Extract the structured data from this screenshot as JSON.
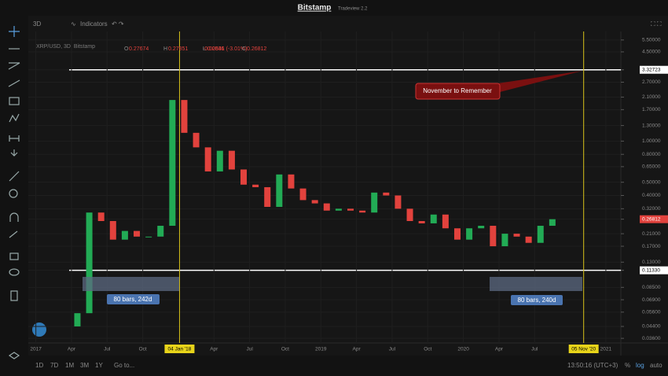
{
  "header": {
    "brand": "Bitstamp",
    "version": "Tradeview 2.2"
  },
  "toolbar": {
    "interval": "3D",
    "indicators": "Indicators"
  },
  "symbol": "XRP/USD, 3D, Bitstamp",
  "ohlc": [
    {
      "label": "O",
      "value": 0.27674
    },
    {
      "label": "H",
      "value": 0.27851
    },
    {
      "label": "L",
      "value": 0.2546
    },
    {
      "label": "C",
      "value": 0.26812
    }
  ],
  "change": "-0.00831 (-3.01%)",
  "annotations": [
    "November to Remember",
    "80 bars, 242d",
    "80 bars, 240d"
  ],
  "bottom_bar": {
    "ranges": [
      "1D",
      "7D",
      "1M",
      "3M",
      "1Y"
    ],
    "goto": "Go to...",
    "clock": "13:50:16 (UTC+3)",
    "percent": "%",
    "log": "log",
    "auto": "auto"
  },
  "chart_data": {
    "type": "candlestick",
    "log_scale": true,
    "up_color": "#22ab55",
    "down_color": "#e2423d",
    "x": [
      "2017-04",
      "2017-05",
      "2017-06",
      "2017-07",
      "2017-08",
      "2017-09",
      "2017-10",
      "2017-11",
      "2017-12",
      "2018-01",
      "2018-02",
      "2018-03",
      "2018-04",
      "2018-05",
      "2018-06",
      "2018-07",
      "2018-08",
      "2018-09",
      "2018-10",
      "2018-11",
      "2018-12",
      "2019-01",
      "2019-02",
      "2019-03",
      "2019-04",
      "2019-05",
      "2019-06",
      "2019-07",
      "2019-08",
      "2019-09",
      "2019-10",
      "2019-11",
      "2019-12",
      "2020-01",
      "2020-02",
      "2020-03",
      "2020-04",
      "2020-05",
      "2020-06",
      "2020-07",
      "2020-08"
    ],
    "values": [
      0.055,
      0.3,
      0.26,
      0.19,
      0.22,
      0.2,
      0.2,
      0.24,
      2.0,
      1.15,
      0.9,
      0.6,
      0.85,
      0.62,
      0.48,
      0.46,
      0.33,
      0.57,
      0.45,
      0.37,
      0.35,
      0.31,
      0.32,
      0.31,
      0.3,
      0.42,
      0.4,
      0.32,
      0.26,
      0.25,
      0.29,
      0.23,
      0.19,
      0.23,
      0.24,
      0.17,
      0.21,
      0.2,
      0.18,
      0.24,
      0.26812
    ],
    "ylim": [
      0.0333,
      6.02
    ],
    "yticks": [
      {
        "value": 5.5,
        "label": "5.50000"
      },
      {
        "value": 4.5,
        "label": "4.50000"
      },
      {
        "value": 3.32723,
        "label": "3.32723"
      },
      {
        "value": 2.7,
        "label": "2.70000"
      },
      {
        "value": 2.1,
        "label": "2.10000"
      },
      {
        "value": 1.7,
        "label": "1.70000"
      },
      {
        "value": 1.3,
        "label": "1.30000"
      },
      {
        "value": 1.0,
        "label": "1.00000"
      },
      {
        "value": 0.8,
        "label": "0.80000"
      },
      {
        "value": 0.65,
        "label": "0.65000"
      },
      {
        "value": 0.5,
        "label": "0.50000"
      },
      {
        "value": 0.4,
        "label": "0.40000"
      },
      {
        "value": 0.32,
        "label": "0.32000"
      },
      {
        "value": 0.26812,
        "label": "0.26812"
      },
      {
        "value": 0.21,
        "label": "0.21000"
      },
      {
        "value": 0.17,
        "label": "0.17000"
      },
      {
        "value": 0.13,
        "label": "0.13000"
      },
      {
        "value": 0.1133,
        "label": "0.11330"
      },
      {
        "value": 0.085,
        "label": "0.08500"
      },
      {
        "value": 0.069,
        "label": "0.06900"
      },
      {
        "value": 0.056,
        "label": "0.05600"
      },
      {
        "value": 0.044,
        "label": "0.04400"
      },
      {
        "value": 0.036,
        "label": "0.03600"
      }
    ],
    "xlim": [
      "2016-12-12",
      "2021-02-09"
    ],
    "xticks": [
      {
        "value": "2017-01",
        "label": "2017"
      },
      {
        "value": "2017-04",
        "label": "Apr"
      },
      {
        "value": "2017-07",
        "label": "Jul"
      },
      {
        "value": "2017-10",
        "label": "Oct"
      },
      {
        "value": "2018-01-04",
        "label": "04 Jan '18"
      },
      {
        "value": "2018-04",
        "label": "Apr"
      },
      {
        "value": "2018-07",
        "label": "Jul"
      },
      {
        "value": "2018-10",
        "label": "Oct"
      },
      {
        "value": "2019-01",
        "label": "2019"
      },
      {
        "value": "2019-04",
        "label": "Apr"
      },
      {
        "value": "2019-07",
        "label": "Jul"
      },
      {
        "value": "2019-10",
        "label": "Oct"
      },
      {
        "value": "2020-01",
        "label": "2020"
      },
      {
        "value": "2020-04",
        "label": "Apr"
      },
      {
        "value": "2020-07",
        "label": "Jul"
      },
      {
        "value": "2020-11-05",
        "label": "05 Nov '20"
      },
      {
        "value": "2021-01",
        "label": "2021"
      }
    ]
  }
}
